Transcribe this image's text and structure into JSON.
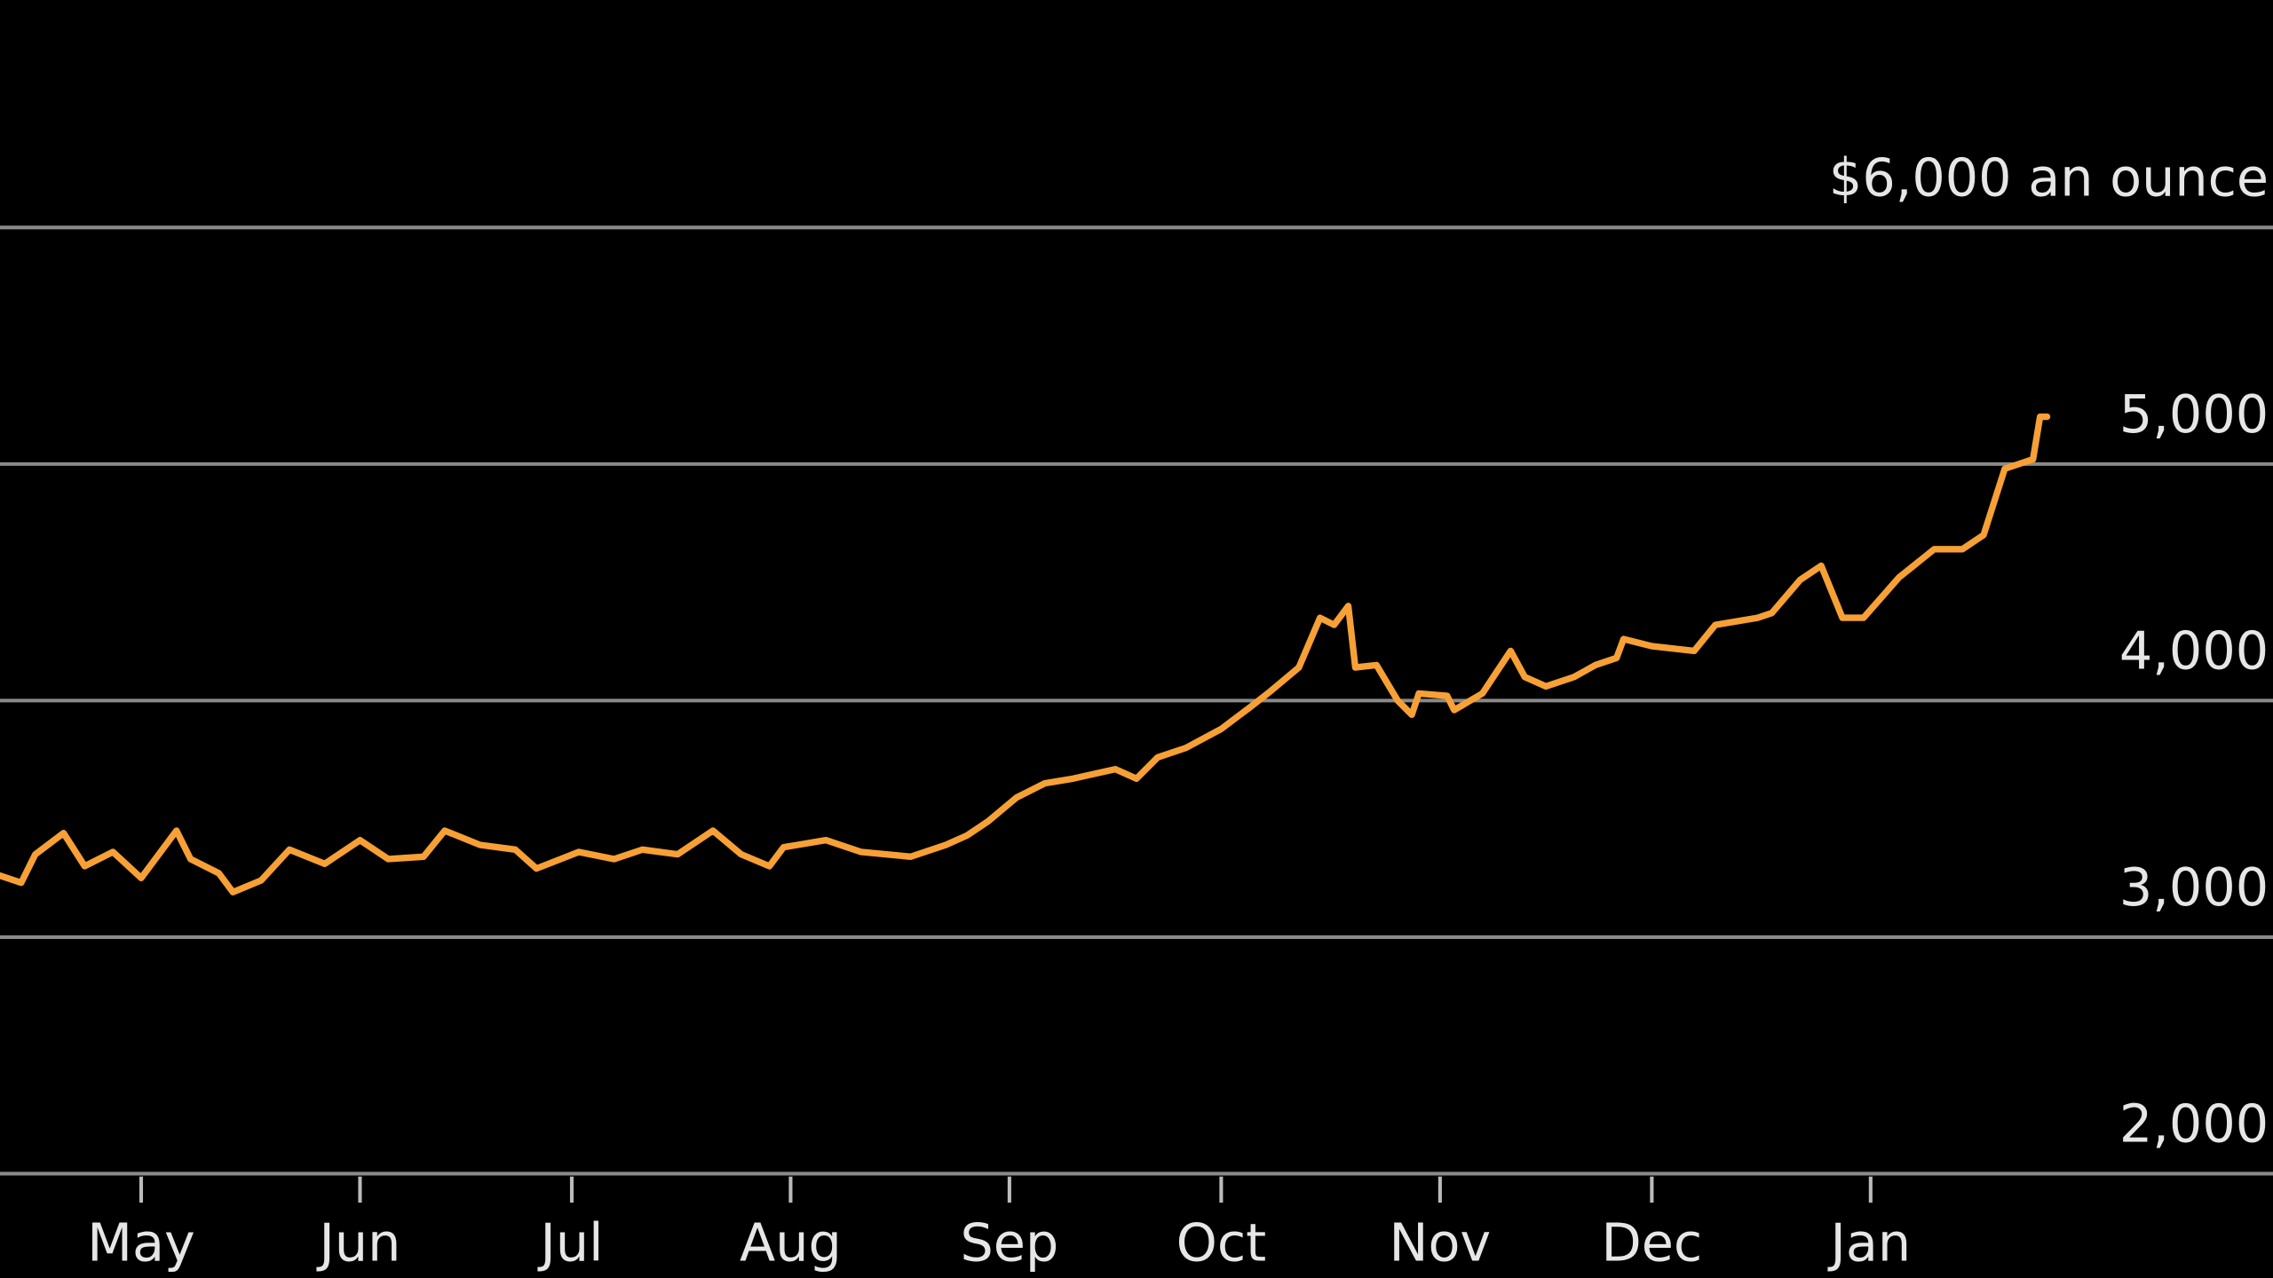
{
  "chart_data": {
    "type": "line",
    "series": [
      {
        "color": "#f7a035",
        "x": [
          -20,
          -17,
          -15,
          -11,
          -8,
          -4,
          0,
          5,
          7,
          11,
          13,
          17,
          21,
          26,
          31,
          35,
          40,
          43,
          48,
          53,
          56,
          62,
          67,
          71,
          76,
          81,
          85,
          89,
          91,
          97,
          102,
          109,
          114,
          117,
          120,
          124,
          128,
          132,
          138,
          141,
          144,
          148,
          153,
          157,
          160,
          164,
          167,
          169,
          171,
          172,
          175,
          178,
          180,
          181,
          185,
          186,
          190,
          194,
          196,
          199,
          203,
          206,
          209,
          210,
          214,
          220,
          223,
          229,
          231,
          235,
          238,
          241,
          244,
          249,
          254,
          258,
          261,
          264,
          268,
          269,
          270
        ],
        "values": [
          3260,
          3230,
          3350,
          3440,
          3300,
          3360,
          3250,
          3450,
          3330,
          3270,
          3190,
          3240,
          3370,
          3310,
          3410,
          3330,
          3340,
          3450,
          3390,
          3370,
          3290,
          3360,
          3330,
          3370,
          3350,
          3450,
          3350,
          3300,
          3380,
          3410,
          3360,
          3340,
          3390,
          3430,
          3490,
          3590,
          3650,
          3670,
          3710,
          3670,
          3760,
          3800,
          3880,
          3970,
          4040,
          4140,
          4350,
          4320,
          4400,
          4140,
          4150,
          4000,
          3940,
          4030,
          4020,
          3960,
          4030,
          4210,
          4100,
          4060,
          4100,
          4150,
          4180,
          4260,
          4230,
          4210,
          4320,
          4350,
          4370,
          4510,
          4570,
          4350,
          4350,
          4520,
          4640,
          4640,
          4700,
          4980,
          5020,
          5200,
          5200
        ]
      }
    ],
    "xlim": [
      -20,
      302
    ],
    "xticks": [
      {
        "value": 0,
        "label": "May"
      },
      {
        "value": 31,
        "label": "Jun"
      },
      {
        "value": 61,
        "label": "Jul"
      },
      {
        "value": 92,
        "label": "Aug"
      },
      {
        "value": 123,
        "label": "Sep"
      },
      {
        "value": 153,
        "label": "Oct"
      },
      {
        "value": 184,
        "label": "Nov"
      },
      {
        "value": 214,
        "label": "Dec"
      },
      {
        "value": 245,
        "label": "Jan"
      }
    ],
    "ylim": [
      2000,
      6000
    ],
    "yticks": [
      {
        "value": 6000,
        "label": "$6,000 an ounce"
      },
      {
        "value": 5000,
        "label": "5,000"
      },
      {
        "value": 4000,
        "label": "4,000"
      },
      {
        "value": 3000,
        "label": "3,000"
      },
      {
        "value": 2000,
        "label": "2,000"
      }
    ],
    "grid": true
  }
}
